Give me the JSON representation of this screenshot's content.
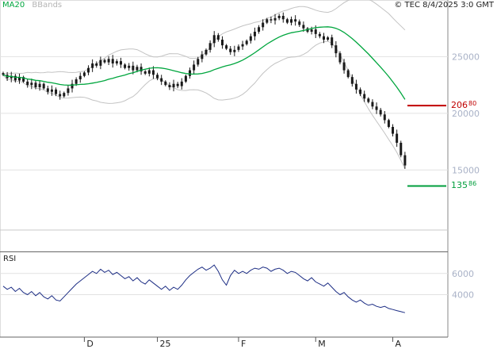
{
  "header": {
    "copyright": "© TEC 8/4/2025 3:0 GMT"
  },
  "legend": {
    "ma": "MA20",
    "bbands": "BBands"
  },
  "rsi_panel": {
    "label": "RSI"
  },
  "levels": {
    "resistance": {
      "value": 20680,
      "label_main": "206",
      "label_sup": "80",
      "color": "#c00000"
    },
    "support": {
      "value": 13586,
      "label_main": "135",
      "label_sup": "86",
      "color": "#009e3c"
    }
  },
  "colors": {
    "candle": "#1a1a1a",
    "ma20": "#00a63e",
    "bollinger": "#c3c3c3",
    "rsi": "#1c2d84",
    "grid": "#e2e2e2",
    "axis_text": "#a9b2c7",
    "tick_text": "#222222"
  },
  "x_axis": {
    "labels": [
      {
        "text": "D",
        "index": 20
      },
      {
        "text": "25",
        "index": 38
      },
      {
        "text": "F",
        "index": 58
      },
      {
        "text": "M",
        "index": 77
      },
      {
        "text": "A",
        "index": 96
      }
    ]
  },
  "chart_data": [
    {
      "type": "candlestick",
      "name": "price",
      "indicators": [
        "MA20",
        "Bollinger Bands"
      ],
      "ma_window": 20,
      "band_mult": 2,
      "y_axis": {
        "ticks": [
          25000,
          20000,
          15000
        ],
        "min": 9700,
        "max": 30000
      },
      "closes": [
        23400,
        23100,
        23300,
        22900,
        23200,
        22800,
        22500,
        22700,
        22300,
        22600,
        22200,
        21900,
        22100,
        21700,
        21500,
        21800,
        22200,
        22600,
        23000,
        23300,
        23600,
        24000,
        24400,
        24200,
        24700,
        24500,
        24800,
        24400,
        24600,
        24300,
        24000,
        24200,
        23800,
        24100,
        23700,
        23500,
        23800,
        23400,
        23100,
        22800,
        22500,
        22300,
        22600,
        22400,
        22800,
        23300,
        23800,
        24300,
        24800,
        25200,
        25600,
        26200,
        26900,
        26500,
        26000,
        25700,
        25400,
        25600,
        25900,
        26100,
        26400,
        26800,
        27200,
        27600,
        28000,
        28300,
        28200,
        28400,
        28600,
        28300,
        28000,
        28300,
        28100,
        27800,
        27500,
        27200,
        27400,
        27000,
        26800,
        26500,
        26700,
        26000,
        25300,
        24500,
        23800,
        23200,
        22600,
        22100,
        21700,
        21300,
        21000,
        20600,
        20300,
        19900,
        19400,
        18800,
        18200,
        17400,
        16300,
        15400
      ]
    },
    {
      "type": "line",
      "name": "RSI",
      "y_axis": {
        "ticks": [
          6000,
          4000
        ],
        "min": 0,
        "max": 8000
      },
      "values": [
        4800,
        4500,
        4700,
        4300,
        4600,
        4200,
        4000,
        4300,
        3900,
        4200,
        3800,
        3600,
        3900,
        3500,
        3400,
        3800,
        4200,
        4600,
        5000,
        5300,
        5600,
        5900,
        6200,
        6000,
        6400,
        6100,
        6300,
        5900,
        6100,
        5800,
        5500,
        5700,
        5300,
        5600,
        5200,
        5000,
        5400,
        5100,
        4800,
        4500,
        4800,
        4400,
        4700,
        4500,
        4900,
        5400,
        5800,
        6100,
        6400,
        6600,
        6300,
        6500,
        6800,
        6200,
        5400,
        4900,
        5800,
        6300,
        6000,
        6200,
        6000,
        6300,
        6500,
        6400,
        6600,
        6500,
        6200,
        6400,
        6500,
        6300,
        6000,
        6200,
        6100,
        5800,
        5500,
        5300,
        5600,
        5200,
        5000,
        4800,
        5100,
        4700,
        4300,
        4000,
        4200,
        3800,
        3500,
        3300,
        3500,
        3200,
        3000,
        3100,
        2900,
        2800,
        2900,
        2700,
        2600,
        2500,
        2400,
        2300
      ]
    }
  ]
}
